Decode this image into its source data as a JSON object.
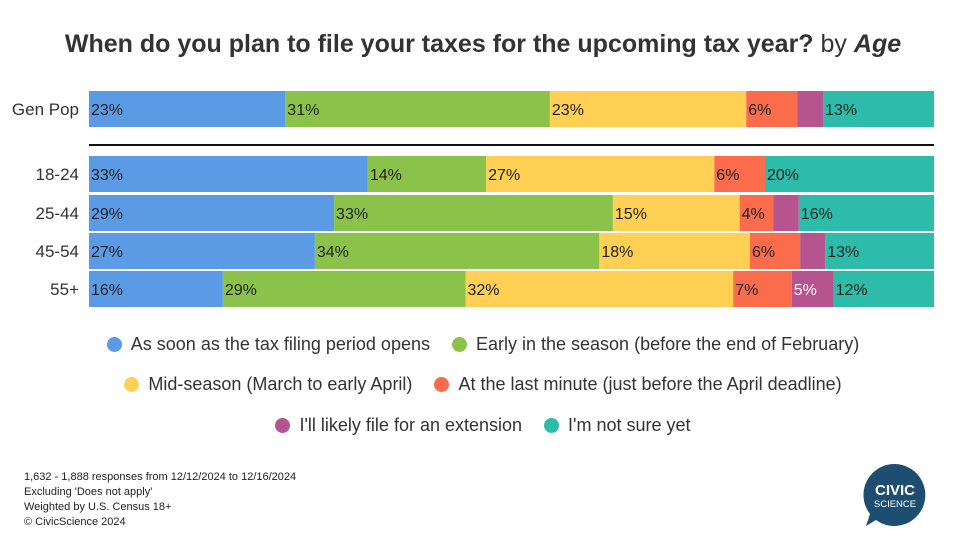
{
  "title": {
    "main": "When do you plan to file your taxes for the upcoming tax year?",
    "by": "by",
    "dimension": "Age"
  },
  "chart_data": {
    "type": "bar",
    "stacked": true,
    "orientation": "horizontal",
    "unit": "%",
    "categories": [
      "Gen Pop",
      "18-24",
      "25-44",
      "45-54",
      "55+"
    ],
    "series": [
      {
        "name": "As soon as the tax filing period opens",
        "color": "#5B9BE6",
        "values": [
          23,
          33,
          29,
          27,
          16
        ]
      },
      {
        "name": "Early in the season (before the end of February)",
        "color": "#8BC34A",
        "values": [
          31,
          14,
          33,
          34,
          29
        ]
      },
      {
        "name": "Mid-season (March to early April)",
        "color": "#FFD054",
        "values": [
          23,
          27,
          15,
          18,
          32
        ]
      },
      {
        "name": "At the last minute (just before the April deadline)",
        "color": "#FA6C4C",
        "values": [
          6,
          6,
          4,
          6,
          7
        ]
      },
      {
        "name": "I'll likely file for an extension",
        "color": "#B5548E",
        "values": [
          3,
          0,
          3,
          3,
          5
        ]
      },
      {
        "name": "I'm not sure yet",
        "color": "#2EBCAA",
        "values": [
          13,
          20,
          16,
          13,
          12
        ]
      }
    ],
    "data_labels": [
      [
        "23%",
        "31%",
        "23%",
        "6%",
        "",
        "13%"
      ],
      [
        "33%",
        "14%",
        "27%",
        "6%",
        "",
        "20%"
      ],
      [
        "29%",
        "33%",
        "15%",
        "4%",
        "",
        "16%"
      ],
      [
        "27%",
        "34%",
        "18%",
        "6%",
        "",
        "13%"
      ],
      [
        "16%",
        "29%",
        "32%",
        "7%",
        "5%",
        "12%"
      ]
    ],
    "separator_after": "Gen Pop",
    "grid": false,
    "legend_position": "bottom"
  },
  "footnote": {
    "line1": "1,632 - 1,888 responses from 12/12/2024 to 12/16/2024",
    "line2": "Excluding 'Does not apply'",
    "line3": "Weighted by U.S. Census 18+",
    "line4": "© CivicScience 2024"
  },
  "logo": {
    "line1": "CIVIC",
    "line2": "SCIENCE",
    "color": "#1D4E72"
  }
}
